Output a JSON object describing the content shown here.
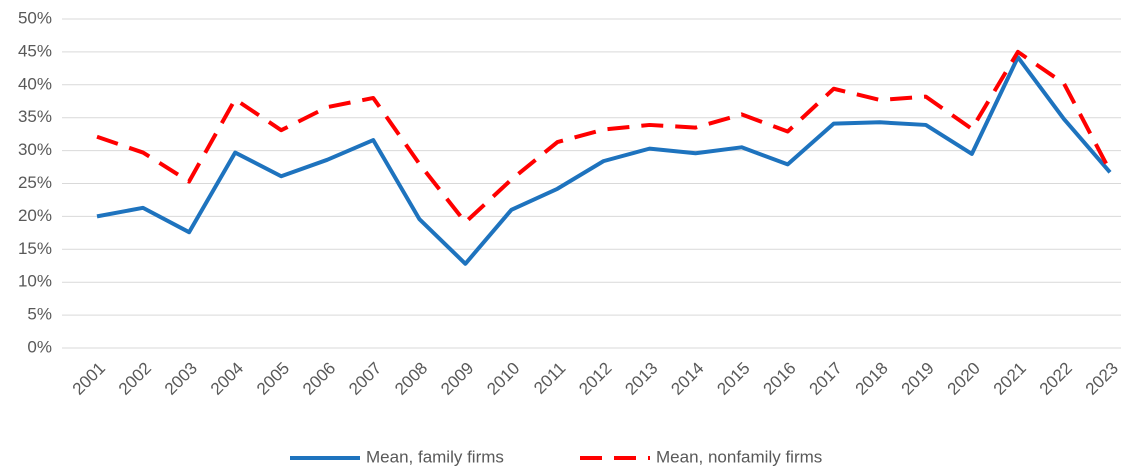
{
  "chart_data": {
    "type": "line",
    "categories": [
      "2001",
      "2002",
      "2003",
      "2004",
      "2005",
      "2006",
      "2007",
      "2008",
      "2009",
      "2010",
      "2011",
      "2012",
      "2013",
      "2014",
      "2015",
      "2016",
      "2017",
      "2018",
      "2019",
      "2020",
      "2021",
      "2022",
      "2023"
    ],
    "series": [
      {
        "name": "Mean, family firms",
        "color": "#1e73be",
        "dash": "solid",
        "values": [
          20.0,
          21.3,
          17.6,
          29.7,
          26.1,
          28.6,
          31.6,
          19.6,
          12.8,
          21.0,
          24.2,
          28.4,
          30.3,
          29.6,
          30.5,
          27.9,
          34.1,
          34.3,
          33.9,
          29.5,
          44.2,
          34.8,
          26.7
        ]
      },
      {
        "name": "Mean, nonfamily firms",
        "color": "#ff0000",
        "dash": "dashed",
        "values": [
          32.1,
          29.7,
          25.3,
          37.8,
          33.1,
          36.6,
          38.0,
          28.0,
          19.1,
          25.6,
          31.3,
          33.2,
          33.9,
          33.5,
          35.5,
          32.9,
          39.4,
          37.7,
          38.2,
          33.3,
          45.0,
          40.2,
          26.9
        ]
      }
    ],
    "ylim": [
      0,
      50
    ],
    "yticks": [
      {
        "value": 0,
        "label": "0%"
      },
      {
        "value": 5,
        "label": "5%"
      },
      {
        "value": 10,
        "label": "10%"
      },
      {
        "value": 15,
        "label": "15%"
      },
      {
        "value": 20,
        "label": "20%"
      },
      {
        "value": 25,
        "label": "25%"
      },
      {
        "value": 30,
        "label": "30%"
      },
      {
        "value": 35,
        "label": "35%"
      },
      {
        "value": 40,
        "label": "40%"
      },
      {
        "value": 45,
        "label": "45%"
      },
      {
        "value": 50,
        "label": "50%"
      }
    ],
    "grid": true,
    "legend": "bottom"
  }
}
